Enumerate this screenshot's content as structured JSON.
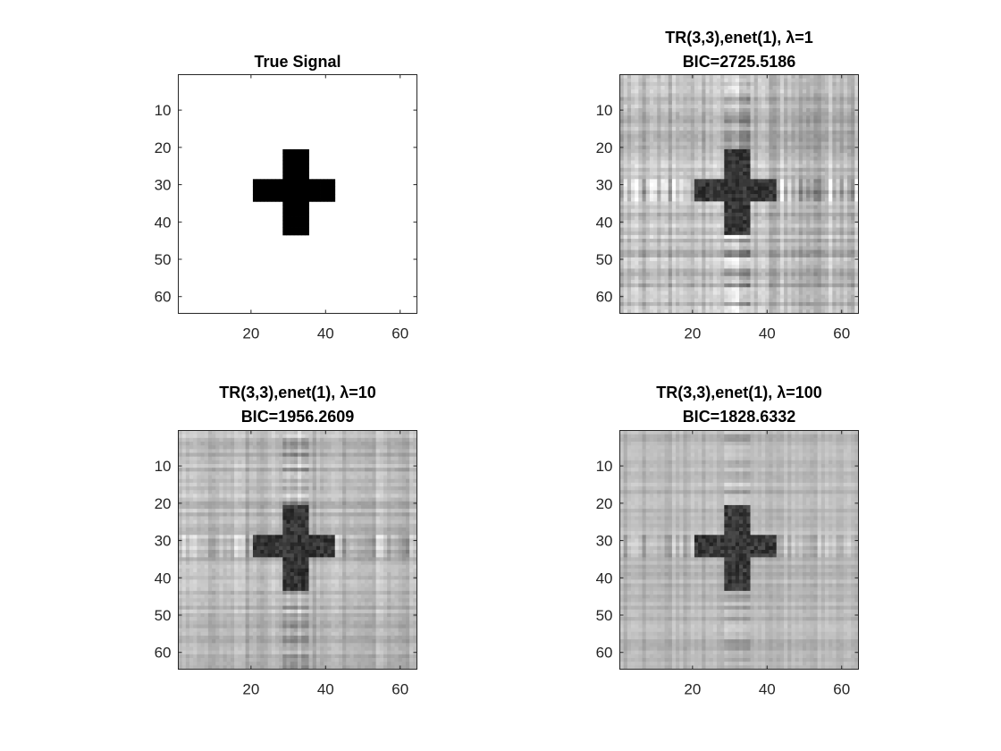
{
  "figure": {
    "background": "#ffffff"
  },
  "chart_data": [
    {
      "type": "heatmap",
      "colormap": "gray",
      "title": "True Signal",
      "xlim": [
        0.5,
        64.5
      ],
      "ylim": [
        0.5,
        64.5
      ],
      "y_reversed": true,
      "xticks": [
        20,
        40,
        60
      ],
      "yticks": [
        10,
        20,
        30,
        40,
        50,
        60
      ],
      "grid": false,
      "grid_size": [
        64,
        64
      ],
      "background_value": 0,
      "signal_value": 1,
      "cross": {
        "vertical_bar": {
          "cols": [
            29,
            35
          ],
          "rows": [
            21,
            43
          ]
        },
        "horizontal_bar": {
          "cols": [
            21,
            42
          ],
          "rows": [
            29,
            34
          ]
        }
      }
    },
    {
      "type": "heatmap",
      "colormap": "gray",
      "title": "TR(3,3),enet(1), λ=1",
      "subtitle": "BIC=2725.5186",
      "lambda": 1,
      "bic": 2725.5186,
      "xlim": [
        0.5,
        64.5
      ],
      "ylim": [
        0.5,
        64.5
      ],
      "y_reversed": true,
      "xticks": [
        20,
        40,
        60
      ],
      "yticks": [
        10,
        20,
        30,
        40,
        50,
        60
      ],
      "grid": false,
      "grid_size": [
        64,
        64
      ],
      "noise_level": 0.55,
      "contrast": 1.0
    },
    {
      "type": "heatmap",
      "colormap": "gray",
      "title": "TR(3,3),enet(1), λ=10",
      "subtitle": "BIC=1956.2609",
      "lambda": 10,
      "bic": 1956.2609,
      "xlim": [
        0.5,
        64.5
      ],
      "ylim": [
        0.5,
        64.5
      ],
      "y_reversed": true,
      "xticks": [
        20,
        40,
        60
      ],
      "yticks": [
        10,
        20,
        30,
        40,
        50,
        60
      ],
      "grid": false,
      "grid_size": [
        64,
        64
      ],
      "noise_level": 0.4,
      "contrast": 1.0
    },
    {
      "type": "heatmap",
      "colormap": "gray",
      "title": "TR(3,3),enet(1), λ=100",
      "subtitle": "BIC=1828.6332",
      "lambda": 100,
      "bic": 1828.6332,
      "xlim": [
        0.5,
        64.5
      ],
      "ylim": [
        0.5,
        64.5
      ],
      "y_reversed": true,
      "xticks": [
        20,
        40,
        60
      ],
      "yticks": [
        10,
        20,
        30,
        40,
        50,
        60
      ],
      "grid": false,
      "grid_size": [
        64,
        64
      ],
      "noise_level": 0.3,
      "contrast": 1.1
    }
  ]
}
